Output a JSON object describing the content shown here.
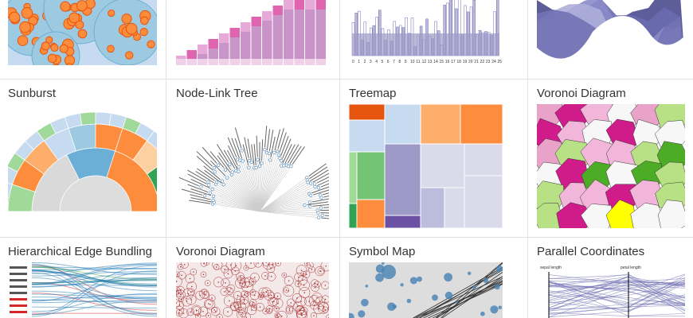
{
  "gallery": {
    "row1": [
      {
        "title": "",
        "thumb": "circle-packing"
      },
      {
        "title": "",
        "thumb": "stacked-bars"
      },
      {
        "title": "",
        "thumb": "histogram-bars",
        "tick_labels": [
          "0",
          "1",
          "2",
          "3",
          "4",
          "5",
          "6",
          "7",
          "8",
          "9",
          "10",
          "11",
          "12",
          "13",
          "14",
          "15",
          "16",
          "17",
          "18",
          "19",
          "20",
          "21",
          "22",
          "23",
          "24",
          "25"
        ]
      },
      {
        "title": "",
        "thumb": "streamgraph"
      }
    ],
    "row2": [
      {
        "title": "Sunburst",
        "thumb": "sunburst"
      },
      {
        "title": "Node-Link Tree",
        "thumb": "radial-tree"
      },
      {
        "title": "Treemap",
        "thumb": "treemap"
      },
      {
        "title": "Voronoi Diagram",
        "thumb": "voronoi-pink-green"
      }
    ],
    "row3": [
      {
        "title": "Hierarchical Edge Bundling",
        "thumb": "edge-bundling"
      },
      {
        "title": "Voronoi Diagram",
        "thumb": "voronoi-airports"
      },
      {
        "title": "Symbol Map",
        "thumb": "symbol-map"
      },
      {
        "title": "Parallel Coordinates",
        "thumb": "parallel-coordinates",
        "axis_labels": [
          "sepal length",
          "petal length"
        ]
      }
    ]
  },
  "colors": {
    "border": "#e2e2e2",
    "title": "#333333",
    "orange": "#fd8d3c",
    "blue": "#6baed6",
    "purple": "#9e7bc6",
    "green": "#4dac26",
    "pink": "#d01c8b"
  }
}
